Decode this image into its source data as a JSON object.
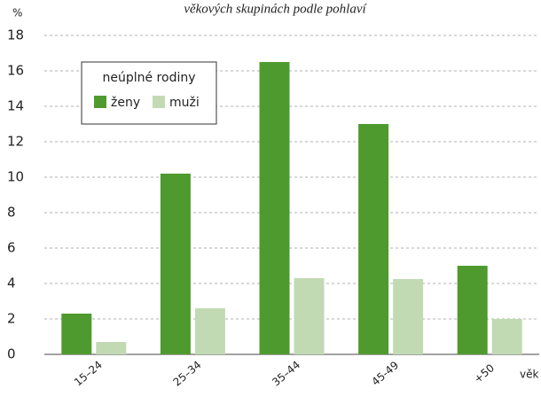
{
  "chart_data": {
    "type": "bar",
    "title": "věkových skupinách podle pohlaví",
    "y_label": "%",
    "x_label": "věk",
    "legend_title": "neúplné rodiny",
    "categories": [
      "15–24",
      "25–34",
      "35–44",
      "45-49",
      "+50"
    ],
    "series": [
      {
        "name": "ženy",
        "color": "#4e9a2e",
        "values": [
          2.3,
          10.2,
          16.5,
          13.0,
          5.0
        ]
      },
      {
        "name": "muži",
        "color": "#c2dab4",
        "values": [
          0.7,
          2.6,
          4.3,
          4.25,
          2.0
        ]
      }
    ],
    "ylim": [
      0,
      18
    ],
    "yticks": [
      0,
      2,
      4,
      6,
      8,
      10,
      12,
      14,
      16,
      18
    ],
    "grid": true
  }
}
